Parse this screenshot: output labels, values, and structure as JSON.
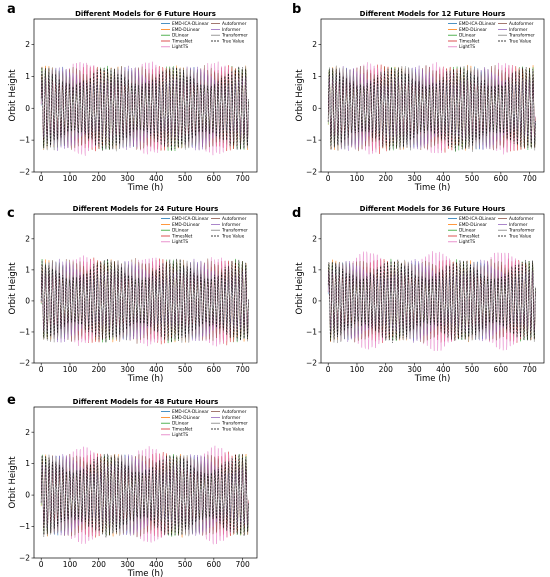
{
  "figure": {
    "legend_order": [
      "EMD-ICA-DLinear",
      "EMD-DLinear",
      "DLinear",
      "TimesNet",
      "LightTS",
      "Autoformer",
      "Informer",
      "Transformer",
      "True Value"
    ]
  },
  "chart_data": [
    {
      "panel": "a",
      "type": "line",
      "title": "Different Models for 6 Future Hours",
      "xlabel": "Time (h)",
      "ylabel": "Orbit Height",
      "xlim": [
        -25,
        750
      ],
      "ylim": [
        -2,
        2.8
      ],
      "xticks": [
        0,
        100,
        200,
        300,
        400,
        500,
        600,
        700
      ],
      "yticks": [
        -2,
        -1,
        0,
        1,
        2
      ],
      "grid": false,
      "legend_position": "top-right",
      "period_hours": 12,
      "x": [
        0,
        720
      ],
      "series": [
        {
          "name": "EMD-ICA-DLinear",
          "color": "#1f77b4",
          "style": "solid",
          "amplitude": 1.25
        },
        {
          "name": "EMD-DLinear",
          "color": "#ff7f0e",
          "style": "solid",
          "amplitude": 1.3
        },
        {
          "name": "DLinear",
          "color": "#2ca02c",
          "style": "solid",
          "amplitude": 1.3
        },
        {
          "name": "TimesNet",
          "color": "#d62728",
          "style": "solid",
          "amplitude": 1.35
        },
        {
          "name": "LightTS",
          "color": "#e377c2",
          "style": "solid",
          "amplitude": 1.45
        },
        {
          "name": "Autoformer",
          "color": "#8c564b",
          "style": "solid",
          "amplitude": 1.3
        },
        {
          "name": "Informer",
          "color": "#9467bd",
          "style": "solid",
          "amplitude": 1.3
        },
        {
          "name": "Transformer",
          "color": "#7f7f7f",
          "style": "solid",
          "amplitude": 1.3
        },
        {
          "name": "True Value",
          "color": "#000000",
          "style": "dashed",
          "amplitude": 1.3
        }
      ]
    },
    {
      "panel": "b",
      "type": "line",
      "title": "Different Models for 12 Future Hours",
      "xlabel": "Time (h)",
      "ylabel": "Orbit Height",
      "xlim": [
        -25,
        750
      ],
      "ylim": [
        -2,
        2.8
      ],
      "xticks": [
        0,
        100,
        200,
        300,
        400,
        500,
        600,
        700
      ],
      "yticks": [
        -2,
        -1,
        0,
        1,
        2
      ],
      "grid": false,
      "legend_position": "top-right",
      "period_hours": 12,
      "x": [
        0,
        720
      ],
      "series": [
        {
          "name": "EMD-ICA-DLinear",
          "color": "#1f77b4",
          "style": "solid",
          "amplitude": 1.25
        },
        {
          "name": "EMD-DLinear",
          "color": "#ff7f0e",
          "style": "solid",
          "amplitude": 1.3
        },
        {
          "name": "DLinear",
          "color": "#2ca02c",
          "style": "solid",
          "amplitude": 1.3
        },
        {
          "name": "TimesNet",
          "color": "#d62728",
          "style": "solid",
          "amplitude": 1.35
        },
        {
          "name": "LightTS",
          "color": "#e377c2",
          "style": "solid",
          "amplitude": 1.4
        },
        {
          "name": "Autoformer",
          "color": "#8c564b",
          "style": "solid",
          "amplitude": 1.3
        },
        {
          "name": "Informer",
          "color": "#9467bd",
          "style": "solid",
          "amplitude": 1.3
        },
        {
          "name": "Transformer",
          "color": "#7f7f7f",
          "style": "solid",
          "amplitude": 1.3
        },
        {
          "name": "True Value",
          "color": "#000000",
          "style": "dashed",
          "amplitude": 1.3
        }
      ]
    },
    {
      "panel": "c",
      "type": "line",
      "title": "Different Models for 24 Future Hours",
      "xlabel": "Time (h)",
      "ylabel": "Orbit Height",
      "xlim": [
        -25,
        750
      ],
      "ylim": [
        -2,
        2.8
      ],
      "xticks": [
        0,
        100,
        200,
        300,
        400,
        500,
        600,
        700
      ],
      "yticks": [
        -2,
        -1,
        0,
        1,
        2
      ],
      "grid": false,
      "legend_position": "top-right",
      "period_hours": 12,
      "x": [
        0,
        720
      ],
      "series": [
        {
          "name": "EMD-ICA-DLinear",
          "color": "#1f77b4",
          "style": "solid",
          "amplitude": 1.25
        },
        {
          "name": "EMD-DLinear",
          "color": "#ff7f0e",
          "style": "solid",
          "amplitude": 1.3
        },
        {
          "name": "DLinear",
          "color": "#2ca02c",
          "style": "solid",
          "amplitude": 1.3
        },
        {
          "name": "TimesNet",
          "color": "#d62728",
          "style": "solid",
          "amplitude": 1.35
        },
        {
          "name": "LightTS",
          "color": "#e377c2",
          "style": "solid",
          "amplitude": 1.4
        },
        {
          "name": "Autoformer",
          "color": "#8c564b",
          "style": "solid",
          "amplitude": 1.3
        },
        {
          "name": "Informer",
          "color": "#9467bd",
          "style": "solid",
          "amplitude": 1.3
        },
        {
          "name": "Transformer",
          "color": "#7f7f7f",
          "style": "solid",
          "amplitude": 1.3
        },
        {
          "name": "True Value",
          "color": "#000000",
          "style": "dashed",
          "amplitude": 1.3
        }
      ]
    },
    {
      "panel": "d",
      "type": "line",
      "title": "Different Models for 36 Future Hours",
      "xlabel": "Time (h)",
      "ylabel": "Orbit Height",
      "xlim": [
        -25,
        750
      ],
      "ylim": [
        -2,
        2.8
      ],
      "xticks": [
        0,
        100,
        200,
        300,
        400,
        500,
        600,
        700
      ],
      "yticks": [
        -2,
        -1,
        0,
        1,
        2
      ],
      "grid": false,
      "legend_position": "top-right",
      "period_hours": 12,
      "x": [
        0,
        720
      ],
      "series": [
        {
          "name": "EMD-ICA-DLinear",
          "color": "#1f77b4",
          "style": "solid",
          "amplitude": 1.25
        },
        {
          "name": "EMD-DLinear",
          "color": "#ff7f0e",
          "style": "solid",
          "amplitude": 1.3
        },
        {
          "name": "DLinear",
          "color": "#2ca02c",
          "style": "solid",
          "amplitude": 1.3
        },
        {
          "name": "TimesNet",
          "color": "#d62728",
          "style": "solid",
          "amplitude": 1.35
        },
        {
          "name": "LightTS",
          "color": "#e377c2",
          "style": "solid",
          "amplitude": 1.6
        },
        {
          "name": "Autoformer",
          "color": "#8c564b",
          "style": "solid",
          "amplitude": 1.3
        },
        {
          "name": "Informer",
          "color": "#9467bd",
          "style": "solid",
          "amplitude": 1.3
        },
        {
          "name": "Transformer",
          "color": "#7f7f7f",
          "style": "solid",
          "amplitude": 1.3
        },
        {
          "name": "True Value",
          "color": "#000000",
          "style": "dashed",
          "amplitude": 1.3
        }
      ]
    },
    {
      "panel": "e",
      "type": "line",
      "title": "Different Models for 48 Future Hours",
      "xlabel": "Time (h)",
      "ylabel": "Orbit Height",
      "xlim": [
        -25,
        750
      ],
      "ylim": [
        -2,
        2.8
      ],
      "xticks": [
        0,
        100,
        200,
        300,
        400,
        500,
        600,
        700
      ],
      "yticks": [
        -2,
        -1,
        0,
        1,
        2
      ],
      "grid": false,
      "legend_position": "top-right",
      "period_hours": 12,
      "x": [
        0,
        720
      ],
      "series": [
        {
          "name": "EMD-ICA-DLinear",
          "color": "#1f77b4",
          "style": "solid",
          "amplitude": 1.25
        },
        {
          "name": "EMD-DLinear",
          "color": "#ff7f0e",
          "style": "solid",
          "amplitude": 1.3
        },
        {
          "name": "DLinear",
          "color": "#2ca02c",
          "style": "solid",
          "amplitude": 1.3
        },
        {
          "name": "TimesNet",
          "color": "#d62728",
          "style": "solid",
          "amplitude": 1.35
        },
        {
          "name": "LightTS",
          "color": "#e377c2",
          "style": "solid",
          "amplitude": 1.55
        },
        {
          "name": "Autoformer",
          "color": "#8c564b",
          "style": "solid",
          "amplitude": 1.3
        },
        {
          "name": "Informer",
          "color": "#9467bd",
          "style": "solid",
          "amplitude": 1.3
        },
        {
          "name": "Transformer",
          "color": "#7f7f7f",
          "style": "solid",
          "amplitude": 1.3
        },
        {
          "name": "True Value",
          "color": "#000000",
          "style": "dashed",
          "amplitude": 1.3
        }
      ]
    }
  ]
}
